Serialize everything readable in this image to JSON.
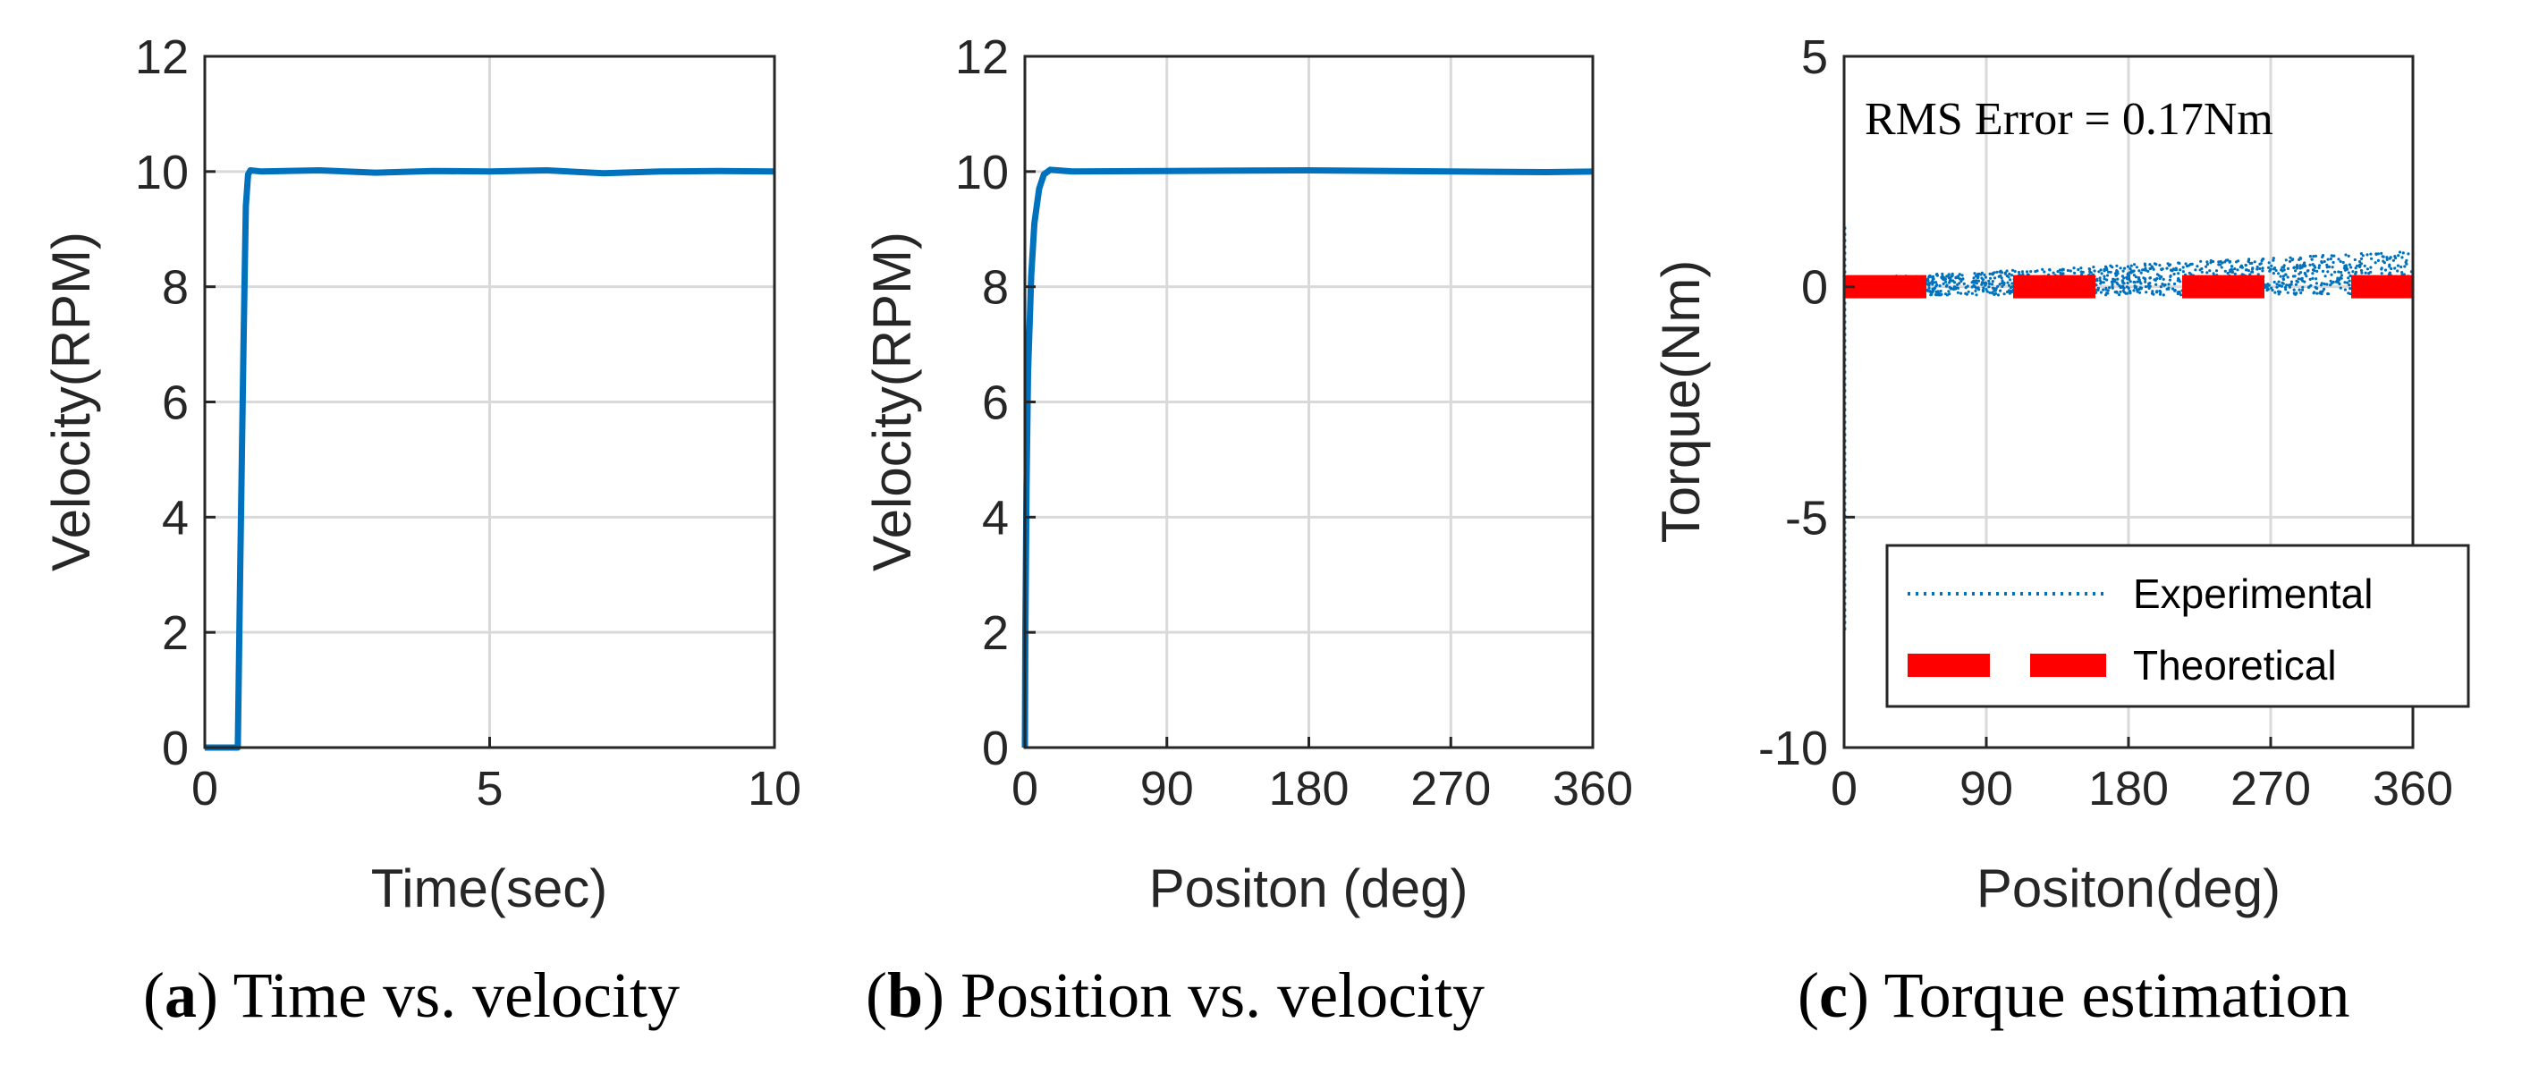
{
  "colors": {
    "series": "#0072BD",
    "theoretical": "#FF0000",
    "grid": "#d9d9d9",
    "axis": "#262626"
  },
  "chart_data": [
    {
      "id": "a",
      "type": "line",
      "caption_letter": "a",
      "caption_text": ") Time vs. velocity",
      "xlabel": "Time(sec)",
      "ylabel": "Velocity(RPM)",
      "xlim": [
        0,
        10
      ],
      "ylim": [
        0,
        12
      ],
      "xticks": [
        0,
        5,
        10
      ],
      "xtick_labels": [
        "0",
        "5",
        "10"
      ],
      "yticks": [
        0,
        2,
        4,
        6,
        8,
        10,
        12
      ],
      "ytick_labels": [
        "0",
        "2",
        "4",
        "6",
        "8",
        "10",
        "12"
      ],
      "grid": true,
      "series": [
        {
          "name": "Velocity",
          "x": [
            0,
            0.58,
            0.62,
            0.68,
            0.72,
            0.76,
            0.8,
            1.0,
            2,
            3,
            4,
            5,
            6,
            7,
            8,
            9,
            10
          ],
          "y": [
            0,
            0,
            3.0,
            7.0,
            9.4,
            9.95,
            10.02,
            10.0,
            10.02,
            9.98,
            10.01,
            10.0,
            10.02,
            9.97,
            10.0,
            10.01,
            10.0
          ]
        }
      ]
    },
    {
      "id": "b",
      "type": "line",
      "caption_letter": "b",
      "caption_text": ") Position vs. velocity",
      "xlabel": "Positon (deg)",
      "ylabel": "Velocity(RPM)",
      "xlim": [
        0,
        360
      ],
      "ylim": [
        0,
        12
      ],
      "xticks": [
        0,
        90,
        180,
        270,
        360
      ],
      "xtick_labels": [
        "0",
        "90",
        "180",
        "270",
        "360"
      ],
      "yticks": [
        0,
        2,
        4,
        6,
        8,
        10,
        12
      ],
      "ytick_labels": [
        "0",
        "2",
        "4",
        "6",
        "8",
        "10",
        "12"
      ],
      "grid": true,
      "series": [
        {
          "name": "Velocity",
          "x": [
            0,
            0.3,
            1.0,
            2.0,
            4.0,
            6.0,
            9.0,
            12.0,
            16.0,
            30,
            90,
            180,
            270,
            330,
            360
          ],
          "y": [
            0,
            2.0,
            4.5,
            6.5,
            8.2,
            9.1,
            9.7,
            9.95,
            10.03,
            10.0,
            10.01,
            10.02,
            10.0,
            9.99,
            10.0
          ]
        }
      ]
    },
    {
      "id": "c",
      "type": "scatter",
      "caption_letter": "c",
      "caption_text": ") Torque estimation",
      "xlabel": "Positon(deg)",
      "ylabel": "Torque(Nm)",
      "xlim": [
        0,
        360
      ],
      "ylim": [
        -10,
        5
      ],
      "xticks": [
        0,
        90,
        180,
        270,
        360
      ],
      "xtick_labels": [
        "0",
        "90",
        "180",
        "270",
        "360"
      ],
      "yticks": [
        -10,
        -5,
        0,
        5
      ],
      "ytick_labels": [
        "-10",
        "-5",
        "0",
        "5"
      ],
      "grid": true,
      "annotation": "RMS Error = 0.17Nm",
      "legend_position": "bottom-right",
      "series": [
        {
          "name": "Experimental",
          "style": "dotted",
          "mean": 0.15,
          "noise": 0.3,
          "spike_min": -7.5
        },
        {
          "name": "Theoretical",
          "style": "dashed",
          "x": [
            0,
            360
          ],
          "y": [
            0,
            0
          ]
        }
      ]
    }
  ]
}
